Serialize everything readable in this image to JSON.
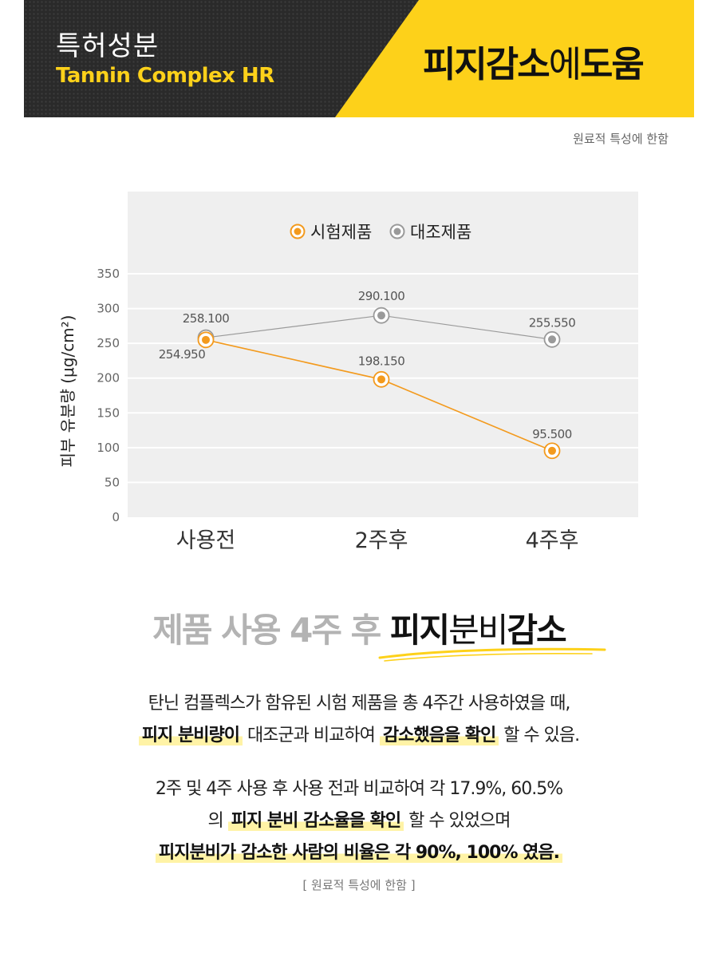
{
  "banner": {
    "kicker": "특허성분",
    "subtitle": "Tannin Complex HR",
    "headline_bold_1": "피지감소",
    "headline_light": "에",
    "headline_bold_2": "도움",
    "colors": {
      "dark": "#2a2a2a",
      "accent": "#fdd11a"
    }
  },
  "note_top": "원료적 특성에 한함",
  "chart_data": {
    "type": "line",
    "categories": [
      "사용전",
      "2주후",
      "4주후"
    ],
    "series": [
      {
        "name": "시험제품",
        "values": [
          254.95,
          198.15,
          95.5
        ],
        "labels": [
          "254.950",
          "198.150",
          "95.500"
        ],
        "color": "#f39a1d"
      },
      {
        "name": "대조제품",
        "values": [
          258.1,
          290.1,
          255.55
        ],
        "labels": [
          "258.100",
          "290.100",
          "255.550"
        ],
        "color": "#9a9a9a"
      }
    ],
    "ylabel": "피부 유분량 (μg/cm²)",
    "yticks": [
      0,
      50,
      100,
      150,
      200,
      250,
      300,
      350
    ],
    "ylim": [
      0,
      350
    ],
    "legend": "top-center",
    "grid": true
  },
  "headline": {
    "part_grey": "제품 사용 4주 후 ",
    "part_bold": "피지",
    "part_light": "분비",
    "part_bold2": "감소"
  },
  "paragraph1": {
    "line1": "탄닌 컴플렉스가 함유된 시험 제품을 총 4주간 사용하였을 때,",
    "hl1": "피지 분비량이",
    "mid": " 대조군과 비교하여 ",
    "hl2": "감소했음을 확인",
    "end": " 할 수 있음."
  },
  "paragraph2": {
    "line1": "2주 및 4주 사용 후 사용 전과 비교하여 각 17.9%, 60.5%",
    "pre": "의 ",
    "hl1": "피지 분비 감소율을 확인",
    "end": " 할 수 있었으며",
    "hl2": "피지분비가 감소한 사람의 비율은 각 90%, 100% 였음."
  },
  "note_bottom": "[ 원료적 특성에 한함 ]"
}
